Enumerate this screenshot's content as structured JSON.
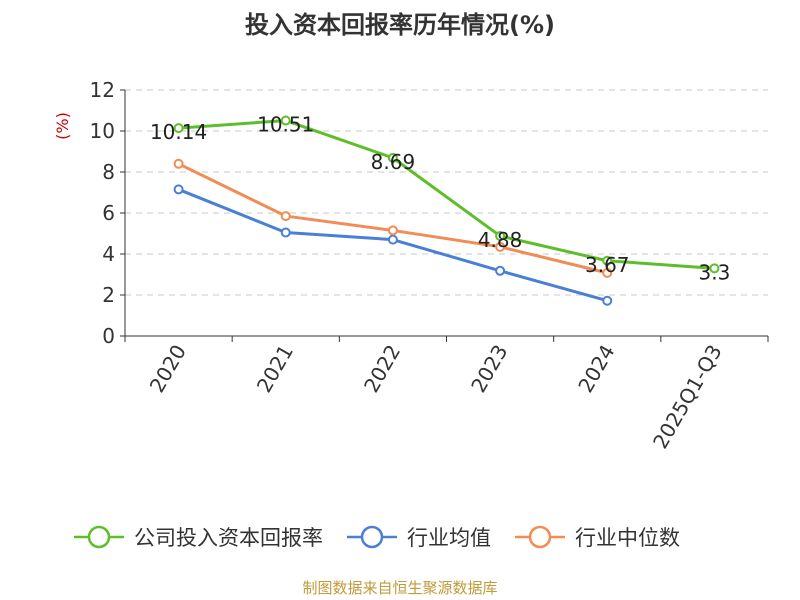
{
  "chart_data": {
    "type": "line",
    "title": "投入资本回报率历年情况(%)",
    "ylabel": "(%)",
    "categories": [
      "2020",
      "2021",
      "2022",
      "2023",
      "2024",
      "2025Q1-Q3"
    ],
    "ylim": [
      0,
      12
    ],
    "yticks": [
      0,
      2,
      4,
      6,
      8,
      10,
      12
    ],
    "grid": true,
    "legend_position": "bottom",
    "series": [
      {
        "name": "公司投入资本回报率",
        "color": "#5cbf2a",
        "values": [
          10.14,
          10.51,
          8.69,
          4.88,
          3.67,
          3.3
        ],
        "labels": [
          "10.14",
          "10.51",
          "8.69",
          "4.88",
          "3.67",
          "3.3"
        ]
      },
      {
        "name": "行业均值",
        "color": "#4a7fd6",
        "values": [
          7.15,
          5.05,
          4.7,
          3.18,
          1.72,
          null
        ]
      },
      {
        "name": "行业中位数",
        "color": "#f28c55",
        "values": [
          8.4,
          5.85,
          5.15,
          4.35,
          3.08,
          null
        ]
      }
    ],
    "source": "制图数据来自恒生聚源数据库"
  }
}
